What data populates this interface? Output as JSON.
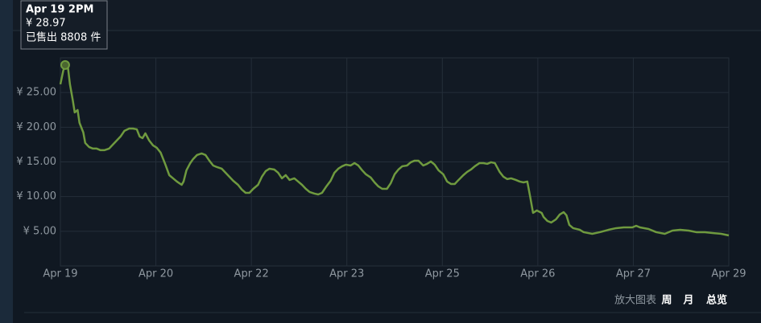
{
  "chart_data": {
    "type": "line",
    "tooltip": [
      "Apr 19 2PM",
      "¥ 28.97",
      "已售出 8808 件"
    ],
    "highlight_point": 2,
    "x": [
      0,
      0.03,
      0.05,
      0.08,
      0.1,
      0.13,
      0.15,
      0.18,
      0.2,
      0.24,
      0.26,
      0.3,
      0.34,
      0.38,
      0.42,
      0.46,
      0.51,
      0.55,
      0.59,
      0.63,
      0.67,
      0.72,
      0.76,
      0.8,
      0.83,
      0.86,
      0.89,
      0.93,
      0.97,
      1.01,
      1.05,
      1.1,
      1.14,
      1.18,
      1.22,
      1.27,
      1.29,
      1.32,
      1.36,
      1.39,
      1.43,
      1.48,
      1.52,
      1.56,
      1.6,
      1.64,
      1.69,
      1.73,
      1.77,
      1.81,
      1.86,
      1.9,
      1.94,
      1.98,
      2.02,
      2.07,
      2.11,
      2.15,
      2.19,
      2.24,
      2.28,
      2.32,
      2.36,
      2.4,
      2.45,
      2.49,
      2.53,
      2.57,
      2.61,
      2.66,
      2.7,
      2.74,
      2.78,
      2.83,
      2.87,
      2.91,
      2.95,
      2.99,
      3.04,
      3.08,
      3.12,
      3.16,
      3.2,
      3.25,
      3.29,
      3.33,
      3.37,
      3.42,
      3.46,
      3.5,
      3.54,
      3.58,
      3.63,
      3.67,
      3.71,
      3.75,
      3.8,
      3.84,
      3.88,
      3.92,
      3.96,
      4.01,
      4.05,
      4.09,
      4.13,
      4.17,
      4.22,
      4.26,
      4.3,
      4.34,
      4.39,
      4.43,
      4.47,
      4.51,
      4.55,
      4.6,
      4.64,
      4.68,
      4.72,
      4.77,
      4.81,
      4.85,
      4.89,
      4.92,
      4.95,
      4.99,
      5.04,
      5.06,
      5.1,
      5.14,
      5.19,
      5.23,
      5.27,
      5.3,
      5.33,
      5.37,
      5.44,
      5.48,
      5.57,
      5.65,
      5.74,
      5.82,
      5.9,
      5.99,
      6.03,
      6.07,
      6.16,
      6.24,
      6.33,
      6.41,
      6.49,
      6.58,
      6.66,
      6.75,
      6.83,
      6.92,
      7.0
    ],
    "series": [
      {
        "color": "#6f9a3f",
        "values": [
          26.19,
          28.16,
          28.97,
          28.51,
          26.19,
          23.87,
          22.13,
          22.48,
          20.63,
          19.24,
          17.73,
          17.15,
          16.92,
          16.92,
          16.69,
          16.69,
          16.92,
          17.5,
          18.08,
          18.66,
          19.47,
          19.81,
          19.81,
          19.7,
          18.66,
          18.42,
          19.12,
          18.08,
          17.38,
          17.03,
          16.34,
          14.6,
          13.09,
          12.63,
          12.17,
          11.7,
          12.17,
          13.79,
          14.83,
          15.41,
          15.99,
          16.22,
          15.99,
          15.18,
          14.48,
          14.25,
          14.02,
          13.44,
          12.86,
          12.28,
          11.7,
          11.01,
          10.54,
          10.54,
          11.12,
          11.7,
          12.86,
          13.67,
          14.02,
          13.9,
          13.44,
          12.63,
          13.09,
          12.4,
          12.63,
          12.17,
          11.7,
          11.12,
          10.66,
          10.43,
          10.31,
          10.54,
          11.36,
          12.28,
          13.44,
          14.02,
          14.37,
          14.6,
          14.48,
          14.83,
          14.48,
          13.79,
          13.21,
          12.75,
          12.05,
          11.47,
          11.12,
          11.12,
          11.94,
          13.21,
          13.9,
          14.37,
          14.48,
          14.95,
          15.18,
          15.18,
          14.48,
          14.72,
          15.06,
          14.6,
          13.79,
          13.21,
          12.17,
          11.82,
          11.82,
          12.4,
          13.09,
          13.56,
          13.9,
          14.37,
          14.83,
          14.83,
          14.72,
          14.95,
          14.83,
          13.56,
          12.86,
          12.52,
          12.63,
          12.4,
          12.17,
          12.05,
          12.17,
          9.97,
          7.65,
          8.0,
          7.65,
          7.07,
          6.49,
          6.26,
          6.72,
          7.42,
          7.76,
          7.3,
          5.91,
          5.45,
          5.21,
          4.87,
          4.63,
          4.87,
          5.21,
          5.45,
          5.56,
          5.56,
          5.79,
          5.56,
          5.33,
          4.87,
          4.63,
          5.1,
          5.21,
          5.1,
          4.87,
          4.87,
          4.75,
          4.63,
          4.4
        ]
      }
    ],
    "xlim": [
      0,
      7
    ],
    "xticks": [
      {
        "value": 0,
        "label": "Apr 19"
      },
      {
        "value": 1,
        "label": "Apr 20"
      },
      {
        "value": 2,
        "label": "Apr 22"
      },
      {
        "value": 3,
        "label": "Apr 23"
      },
      {
        "value": 4,
        "label": "Apr 25"
      },
      {
        "value": 5,
        "label": "Apr 26"
      },
      {
        "value": 6,
        "label": "Apr 27"
      },
      {
        "value": 7,
        "label": "Apr 29"
      }
    ],
    "ylim": [
      0,
      30
    ],
    "yticks": [
      {
        "value": 5,
        "label": "¥ 5.00"
      },
      {
        "value": 10,
        "label": "¥ 10.00"
      },
      {
        "value": 15,
        "label": "¥ 15.00"
      },
      {
        "value": 20,
        "label": "¥ 20.00"
      },
      {
        "value": 25,
        "label": "¥ 25.00"
      }
    ],
    "grid": true,
    "controls": {
      "zoom_label": "放大图表",
      "options": [
        "周",
        "月",
        "总览"
      ]
    }
  }
}
